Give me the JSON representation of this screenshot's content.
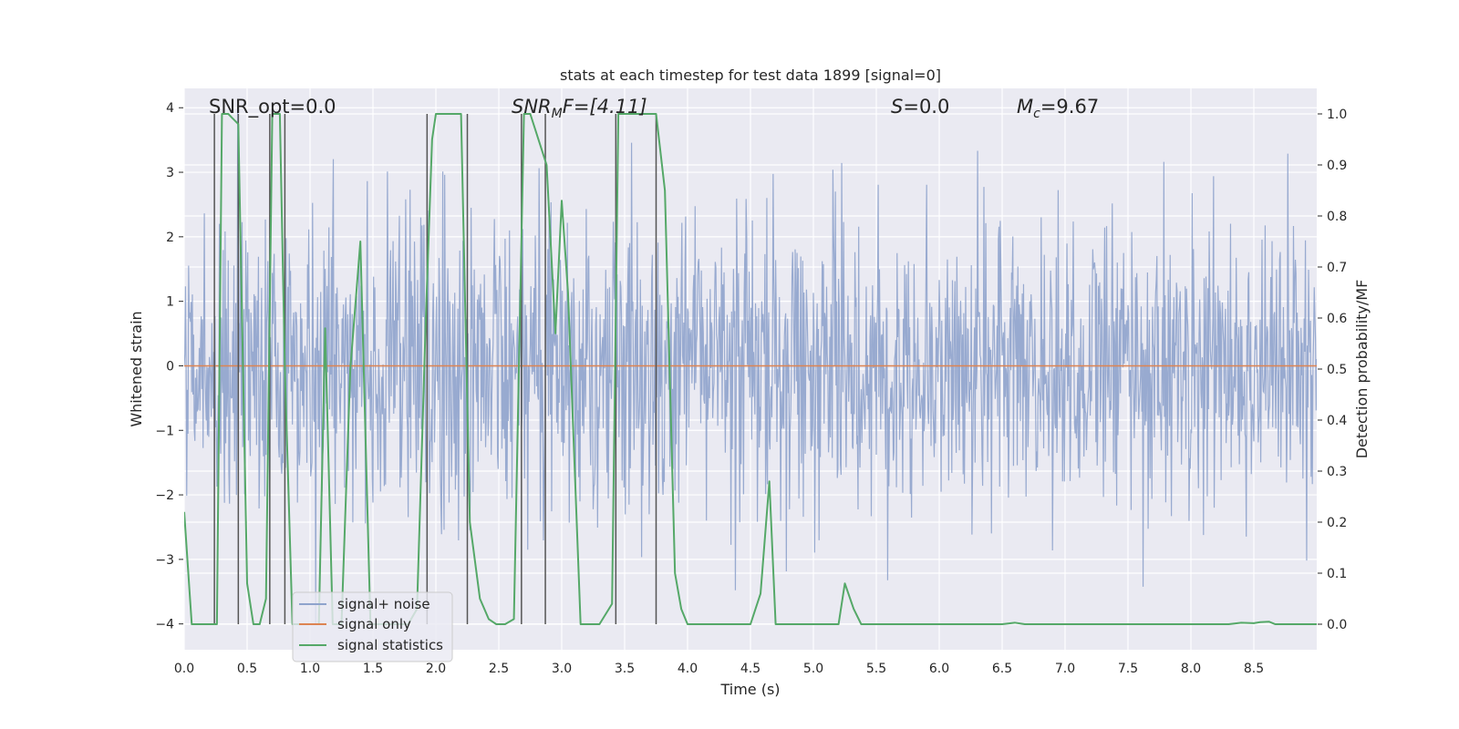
{
  "chart_data": {
    "type": "line",
    "title": "stats at each timestep for test data 1899 [signal=0]",
    "xlabel": "Time (s)",
    "ylabel": "Whitened strain",
    "ylabel_right": "Detection probability/MF",
    "xlim": [
      0.0,
      9.0
    ],
    "ylim": [
      -4.4,
      4.3
    ],
    "ylim_right": [
      -0.05,
      1.05
    ],
    "xticks": [
      "0.0",
      "0.5",
      "1.0",
      "1.5",
      "2.0",
      "2.5",
      "3.0",
      "3.5",
      "4.0",
      "4.5",
      "5.0",
      "5.5",
      "6.0",
      "6.5",
      "7.0",
      "7.5",
      "8.0",
      "8.5"
    ],
    "yticks": [
      "4",
      "3",
      "2",
      "1",
      "0",
      "−1",
      "−2",
      "−3",
      "−4"
    ],
    "yticks_right": [
      "1.0",
      "0.9",
      "0.8",
      "0.7",
      "0.6",
      "0.5",
      "0.4",
      "0.3",
      "0.2",
      "0.1",
      "0.0"
    ],
    "annotations": {
      "snr_opt": "SNR_opt=0.0",
      "snr_mf_main": "SNR",
      "snr_mf_sub": "M",
      "snr_mf_rest": "F=[4.11]",
      "s_var": "S",
      "s_rest": "=0.0",
      "mc_var": "M",
      "mc_sub": "c",
      "mc_rest": "=9.67"
    },
    "legend": {
      "position": "lower-left",
      "entries": [
        "signal+ noise",
        "signal only",
        "signal statistics"
      ]
    },
    "colors": {
      "noise": "#8fa3cc",
      "signal_only": "#dd8452",
      "statistics": "#55a868",
      "markers": "#555555",
      "background": "#eaeaf2",
      "grid": "#ffffff"
    },
    "series": [
      {
        "name": "signal statistics",
        "axis": "right",
        "x": [
          0.0,
          0.06,
          0.2,
          0.26,
          0.3,
          0.35,
          0.43,
          0.5,
          0.55,
          0.6,
          0.65,
          0.7,
          0.76,
          0.8,
          0.86,
          0.93,
          1.0,
          1.07,
          1.12,
          1.18,
          1.25,
          1.32,
          1.4,
          1.48,
          1.56,
          1.62,
          1.7,
          1.78,
          1.85,
          1.92,
          1.97,
          2.0,
          2.2,
          2.27,
          2.35,
          2.42,
          2.48,
          2.55,
          2.62,
          2.7,
          2.75,
          2.88,
          2.95,
          3.0,
          3.05,
          3.15,
          3.2,
          3.3,
          3.4,
          3.45,
          3.52,
          3.75,
          3.82,
          3.9,
          3.95,
          4.0,
          4.1,
          4.5,
          4.58,
          4.65,
          4.7,
          4.75,
          4.82,
          5.2,
          5.25,
          5.32,
          5.38,
          6.5,
          6.6,
          6.68,
          7.0,
          8.3,
          8.4,
          8.5,
          8.55,
          8.62,
          8.67,
          8.72,
          9.0
        ],
        "values": [
          0.22,
          0.0,
          0.0,
          0.0,
          1.0,
          1.0,
          0.98,
          0.08,
          0.0,
          0.0,
          0.05,
          1.0,
          1.0,
          0.5,
          0.0,
          0.0,
          0.0,
          0.0,
          0.58,
          0.0,
          0.0,
          0.5,
          0.75,
          0.0,
          0.0,
          0.0,
          0.0,
          0.0,
          0.03,
          0.6,
          0.95,
          1.0,
          1.0,
          0.2,
          0.05,
          0.01,
          0.0,
          0.0,
          0.01,
          1.0,
          1.0,
          0.9,
          0.57,
          0.83,
          0.65,
          0.0,
          0.0,
          0.0,
          0.04,
          1.0,
          1.0,
          1.0,
          0.85,
          0.1,
          0.03,
          0.0,
          0.0,
          0.0,
          0.06,
          0.28,
          0.0,
          0.0,
          0.0,
          0.0,
          0.08,
          0.03,
          0.0,
          0.0,
          0.003,
          0.0,
          0.0,
          0.0,
          0.003,
          0.002,
          0.004,
          0.005,
          0.0,
          0.0,
          0.0
        ]
      },
      {
        "name": "signal only",
        "axis": "left",
        "x": [
          0.0,
          9.0
        ],
        "values": [
          0.0,
          0.0
        ]
      },
      {
        "name": "signal+ noise",
        "axis": "left",
        "note": "dense whitened-strain noise trace, approx. range -4 to 4 around 0",
        "approx_range": [
          -4.0,
          4.0
        ]
      }
    ],
    "vertical_markers_x": [
      0.24,
      0.43,
      0.68,
      0.8,
      1.93,
      2.25,
      2.68,
      2.87,
      3.43,
      3.75
    ]
  }
}
